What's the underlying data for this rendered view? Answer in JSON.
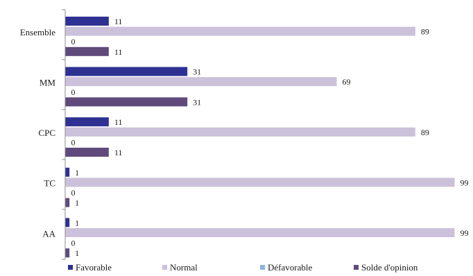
{
  "chart_data": {
    "type": "bar",
    "orientation": "horizontal",
    "title": "",
    "xlabel": "",
    "ylabel": "",
    "xlim": [
      0,
      100
    ],
    "grid": false,
    "legend_position": "bottom",
    "categories": [
      "Ensemble",
      "MM",
      "CPC",
      "TC",
      "AA"
    ],
    "series": [
      {
        "name": "Favorable",
        "color": "#2e3192",
        "values": [
          11,
          31,
          11,
          1,
          1
        ]
      },
      {
        "name": "Normal",
        "color": "#ccc1da",
        "values": [
          89,
          69,
          89,
          99,
          99
        ]
      },
      {
        "name": "Défavorable",
        "color": "#8db3e2",
        "values": [
          0,
          0,
          0,
          0,
          0
        ]
      },
      {
        "name": "Solde d'opinion",
        "color": "#604a7b",
        "values": [
          11,
          31,
          11,
          1,
          1
        ]
      }
    ]
  }
}
